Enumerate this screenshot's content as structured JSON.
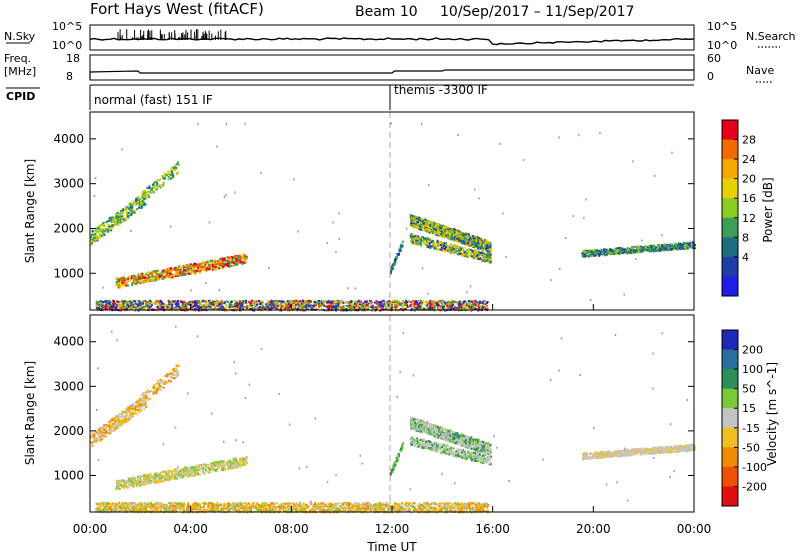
{
  "header": {
    "title": "Fort Hays West (fitACF)",
    "beam": "Beam 10",
    "dates": "10/Sep/2017 – 11/Sep/2017"
  },
  "strips": {
    "nsky_label": "N.Sky",
    "nsky_ticks": [
      "10^5",
      "10^0"
    ],
    "nsearch_label": "N.Search",
    "nsearch_ticks": [
      "10^5",
      "10^0"
    ],
    "freq_label": "Freq.",
    "freq_unit": "[MHz]",
    "freq_ticks": [
      "18",
      "8"
    ],
    "nave_label": "Nave",
    "nave_ticks": [
      "60",
      "0"
    ],
    "cpid_label": "CPID",
    "cpid_modes": [
      "normal (fast) 151 IF",
      "themis -3300 IF"
    ]
  },
  "chart_data": [
    {
      "type": "heatmap",
      "name": "power",
      "ylabel": "Slant Range [km]",
      "yticks": [
        1000,
        2000,
        3000,
        4000
      ],
      "ylim": [
        180,
        4600
      ],
      "xlim": [
        0,
        24
      ],
      "colorbar": {
        "label": "Power [dB]",
        "ticks": [
          "28",
          "24",
          "20",
          "16",
          "12",
          "8",
          "4"
        ],
        "colors": [
          "#e4001a",
          "#f06a00",
          "#f5a800",
          "#e6d200",
          "#8acd1e",
          "#3c9e56",
          "#1e6e80",
          "#1e3ea6",
          "#1e1ee6"
        ]
      }
    },
    {
      "type": "heatmap",
      "name": "velocity",
      "ylabel": "Slant Range [km]",
      "yticks": [
        1000,
        2000,
        3000,
        4000
      ],
      "ylim": [
        180,
        4600
      ],
      "xlim": [
        0,
        24
      ],
      "xlabel": "Time UT",
      "xticks": [
        "00:00",
        "04:00",
        "08:00",
        "12:00",
        "16:00",
        "20:00",
        "00:00"
      ],
      "colorbar": {
        "label": "Velocity [m s^-1]",
        "ticks": [
          "200",
          "100",
          "50",
          "15",
          "-15",
          "-50",
          "-100",
          "-200"
        ],
        "colors": [
          "#1e2ab4",
          "#2a6e9e",
          "#2e8e5a",
          "#7ac83a",
          "#c4c4c4",
          "#f0c020",
          "#f08a00",
          "#ec5000",
          "#e01010"
        ]
      }
    }
  ]
}
